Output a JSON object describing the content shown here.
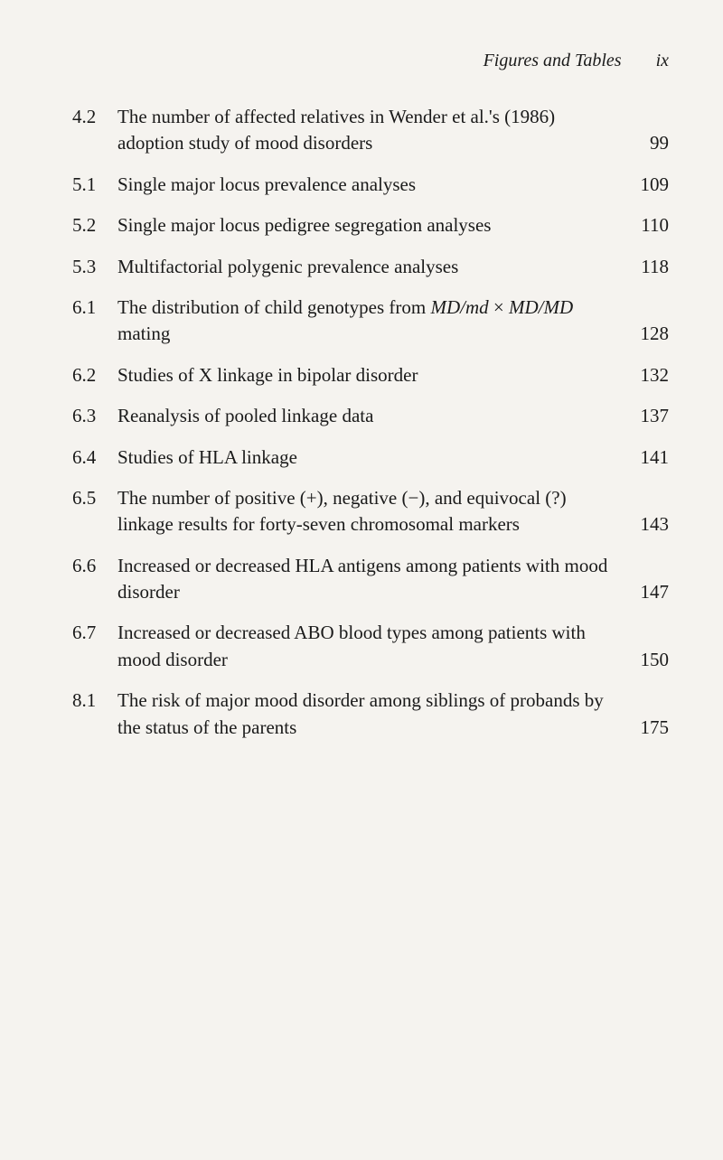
{
  "header": {
    "title": "Figures and Tables",
    "page": "ix"
  },
  "entries": [
    {
      "number": "4.2",
      "title": "The number of affected relatives in Wender et al.'s (1986) adoption study of mood disorders",
      "page": "99"
    },
    {
      "number": "5.1",
      "title": "Single major locus prevalence analyses",
      "page": "109"
    },
    {
      "number": "5.2",
      "title": "Single major locus pedigree segregation analyses",
      "page": "110"
    },
    {
      "number": "5.3",
      "title": "Multifactorial polygenic prevalence analyses",
      "page": "118"
    },
    {
      "number": "6.1",
      "title_html": "The distribution of child genotypes from <span class=\"italic\">MD/md</span> × <span class=\"italic\">MD/MD</span> mating",
      "page": "128"
    },
    {
      "number": "6.2",
      "title": "Studies of X linkage in bipolar disorder",
      "page": "132"
    },
    {
      "number": "6.3",
      "title": "Reanalysis of pooled linkage data",
      "page": "137"
    },
    {
      "number": "6.4",
      "title": "Studies of HLA linkage",
      "page": "141"
    },
    {
      "number": "6.5",
      "title": "The number of positive (+), negative (−), and equivocal (?) linkage results for forty-seven chromosomal markers",
      "page": "143"
    },
    {
      "number": "6.6",
      "title": "Increased or decreased HLA antigens among patients with mood disorder",
      "page": "147"
    },
    {
      "number": "6.7",
      "title": "Increased or decreased ABO blood types among patients with mood disorder",
      "page": "150"
    },
    {
      "number": "8.1",
      "title": "The risk of major mood disorder among siblings of probands by the status of the parents",
      "page": "175"
    }
  ]
}
